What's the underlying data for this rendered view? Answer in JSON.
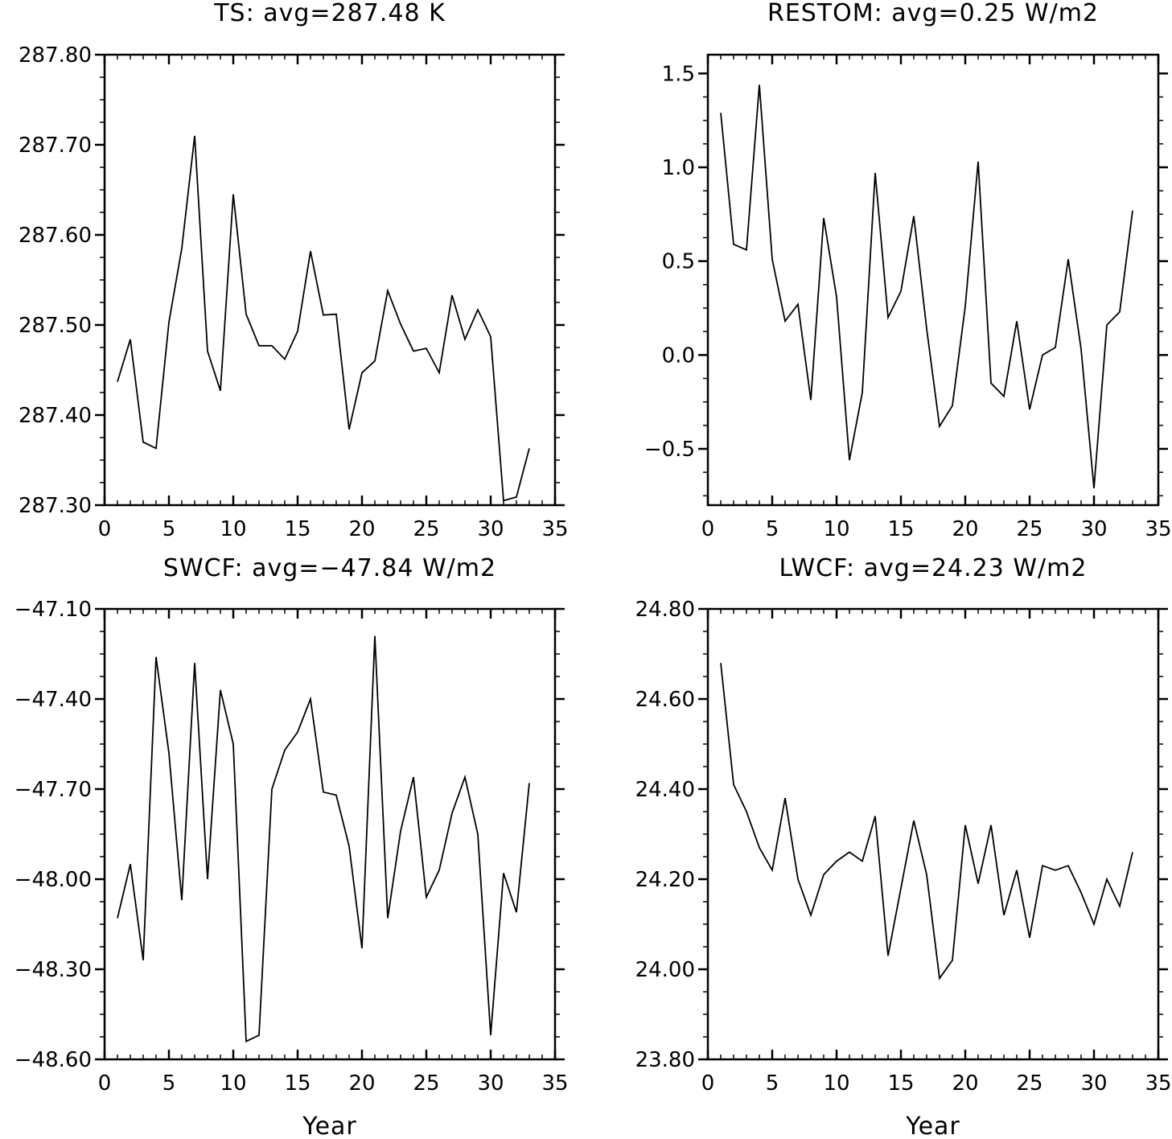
{
  "chart_data": [
    {
      "type": "line",
      "title": "TS: avg=287.48 K",
      "xlabel": "",
      "ylabel": "",
      "xlim": [
        0,
        35
      ],
      "ylim": [
        287.3,
        287.8
      ],
      "xticks": [
        "0",
        "5",
        "10",
        "15",
        "20",
        "25",
        "30",
        "35"
      ],
      "yticks": [
        "287.30",
        "287.40",
        "287.50",
        "287.60",
        "287.70",
        "287.80"
      ],
      "grid": false,
      "x": [
        1,
        2,
        3,
        4,
        5,
        6,
        7,
        8,
        9,
        10,
        11,
        12,
        13,
        14,
        15,
        16,
        17,
        18,
        19,
        20,
        21,
        22,
        23,
        24,
        25,
        26,
        27,
        28,
        29,
        30,
        31,
        32,
        33
      ],
      "series": [
        {
          "values": [
            287.437,
            287.484,
            287.37,
            287.363,
            287.503,
            287.585,
            287.71,
            287.471,
            287.427,
            287.645,
            287.512,
            287.477,
            287.477,
            287.462,
            287.493,
            287.582,
            287.511,
            287.512,
            287.384,
            287.447,
            287.46,
            287.538,
            287.501,
            287.471,
            287.474,
            287.447,
            287.533,
            287.484,
            287.517,
            287.487,
            287.305,
            287.309,
            287.363
          ]
        }
      ]
    },
    {
      "type": "line",
      "title": "RESTOM: avg=0.25 W/m2",
      "xlabel": "",
      "ylabel": "",
      "xlim": [
        0,
        35
      ],
      "ylim": [
        -0.8,
        1.6
      ],
      "xticks": [
        "0",
        "5",
        "10",
        "15",
        "20",
        "25",
        "30",
        "35"
      ],
      "yticks": [
        "−0.5",
        "0.0",
        "0.5",
        "1.0",
        "1.5"
      ],
      "ytick_values": [
        -0.5,
        0.0,
        0.5,
        1.0,
        1.5
      ],
      "grid": false,
      "x": [
        1,
        2,
        3,
        4,
        5,
        6,
        7,
        8,
        9,
        10,
        11,
        12,
        13,
        14,
        15,
        16,
        17,
        18,
        19,
        20,
        21,
        22,
        23,
        24,
        25,
        26,
        27,
        28,
        29,
        30,
        31,
        32,
        33
      ],
      "series": [
        {
          "values": [
            1.29,
            0.59,
            0.56,
            1.44,
            0.51,
            0.18,
            0.27,
            -0.24,
            0.73,
            0.31,
            -0.56,
            -0.2,
            0.97,
            0.2,
            0.34,
            0.74,
            0.14,
            -0.38,
            -0.27,
            0.26,
            1.03,
            -0.15,
            -0.22,
            0.18,
            -0.29,
            0.0,
            0.04,
            0.51,
            0.03,
            -0.71,
            0.16,
            0.23,
            0.77
          ]
        }
      ]
    },
    {
      "type": "line",
      "title": "SWCF: avg=−47.84 W/m2",
      "xlabel": "Year",
      "ylabel": "",
      "xlim": [
        0,
        35
      ],
      "ylim": [
        -48.6,
        -47.1
      ],
      "xticks": [
        "0",
        "5",
        "10",
        "15",
        "20",
        "25",
        "30",
        "35"
      ],
      "yticks": [
        "−48.60",
        "−48.30",
        "−48.00",
        "−47.70",
        "−47.40",
        "−47.10"
      ],
      "grid": false,
      "x": [
        1,
        2,
        3,
        4,
        5,
        6,
        7,
        8,
        9,
        10,
        11,
        12,
        13,
        14,
        15,
        16,
        17,
        18,
        19,
        20,
        21,
        22,
        23,
        24,
        25,
        26,
        27,
        28,
        29,
        30,
        31,
        32,
        33
      ],
      "series": [
        {
          "values": [
            -48.13,
            -47.95,
            -48.27,
            -47.26,
            -47.58,
            -48.07,
            -47.28,
            -48.0,
            -47.37,
            -47.55,
            -48.54,
            -48.52,
            -47.7,
            -47.57,
            -47.51,
            -47.4,
            -47.71,
            -47.72,
            -47.89,
            -48.23,
            -47.19,
            -48.13,
            -47.84,
            -47.66,
            -48.06,
            -47.97,
            -47.78,
            -47.66,
            -47.85,
            -48.52,
            -47.98,
            -48.11,
            -47.68
          ]
        }
      ]
    },
    {
      "type": "line",
      "title": "LWCF: avg=24.23 W/m2",
      "xlabel": "Year",
      "ylabel": "",
      "xlim": [
        0,
        35
      ],
      "ylim": [
        23.8,
        24.8
      ],
      "xticks": [
        "0",
        "5",
        "10",
        "15",
        "20",
        "25",
        "30",
        "35"
      ],
      "yticks": [
        "23.80",
        "24.00",
        "24.20",
        "24.40",
        "24.60",
        "24.80"
      ],
      "grid": false,
      "x": [
        1,
        2,
        3,
        4,
        5,
        6,
        7,
        8,
        9,
        10,
        11,
        12,
        13,
        14,
        15,
        16,
        17,
        18,
        19,
        20,
        21,
        22,
        23,
        24,
        25,
        26,
        27,
        28,
        29,
        30,
        31,
        32,
        33
      ],
      "series": [
        {
          "values": [
            24.68,
            24.41,
            24.35,
            24.27,
            24.22,
            24.38,
            24.2,
            24.12,
            24.21,
            24.24,
            24.26,
            24.24,
            24.34,
            24.03,
            24.18,
            24.33,
            24.21,
            23.98,
            24.02,
            24.32,
            24.19,
            24.32,
            24.12,
            24.22,
            24.07,
            24.23,
            24.22,
            24.23,
            24.17,
            24.1,
            24.2,
            24.14,
            24.26
          ]
        }
      ]
    }
  ]
}
